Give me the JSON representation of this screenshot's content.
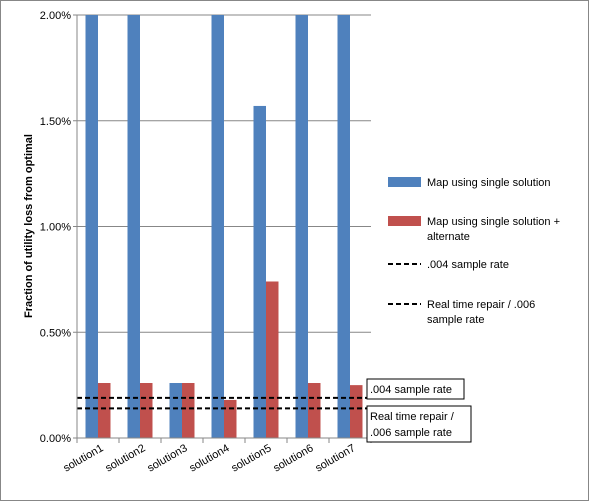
{
  "chart_data": {
    "type": "bar",
    "title": "",
    "xlabel": "",
    "ylabel": "Fraction of utility loss from optimal",
    "ylim": [
      0,
      0.02
    ],
    "yticks": [
      "0.00%",
      "0.50%",
      "1.00%",
      "1.50%",
      "2.00%"
    ],
    "ytick_values": [
      0,
      0.005,
      0.01,
      0.015,
      0.02
    ],
    "grid": "horizontal major gridlines",
    "legend_position": "right",
    "categories": [
      "solution1",
      "solution2",
      "solution3",
      "solution4",
      "solution5",
      "solution6",
      "solution7"
    ],
    "series": [
      {
        "name": "Map using single solution",
        "color": "#4f81bd",
        "values": [
          0.02,
          0.02,
          0.0026,
          0.02,
          0.0157,
          0.02,
          0.02
        ]
      },
      {
        "name": "Map using single solution + alternate",
        "color": "#c0504d",
        "values": [
          0.0026,
          0.0026,
          0.0026,
          0.0018,
          0.0074,
          0.0026,
          0.0025
        ]
      }
    ],
    "reference_lines": [
      {
        "name": ".004 sample rate",
        "value": 0.0019,
        "style": "dashed",
        "color": "#000000",
        "annotation": ".004 sample rate"
      },
      {
        "name": "Real time repair / .006 sample rate",
        "value": 0.0014,
        "style": "dashed",
        "color": "#000000",
        "annotation": "Real time repair / .006 sample rate"
      }
    ]
  },
  "legend": {
    "items": [
      {
        "label_lines": [
          "Map using single solution"
        ],
        "kind": "box",
        "color": "#4f81bd"
      },
      {
        "label_lines": [
          "Map using single solution +",
          "alternate"
        ],
        "kind": "box",
        "color": "#c0504d"
      },
      {
        "label_lines": [
          ".004 sample rate"
        ],
        "kind": "dash",
        "color": "#000000"
      },
      {
        "label_lines": [
          "Real time repair / .006",
          "sample rate"
        ],
        "kind": "dash",
        "color": "#000000"
      }
    ]
  },
  "annotations": [
    {
      "lines": [
        ".004 sample rate"
      ]
    },
    {
      "lines": [
        "Real time repair /",
        ".006 sample rate"
      ]
    }
  ]
}
